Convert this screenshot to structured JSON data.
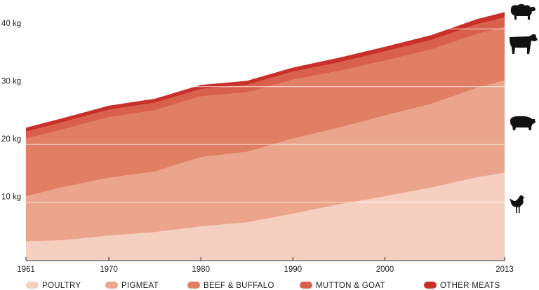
{
  "chart_data": {
    "type": "area",
    "stacked": true,
    "title": "",
    "xlabel": "",
    "ylabel": "",
    "xlim": [
      1961,
      2013
    ],
    "ylim": [
      0,
      45
    ],
    "grid": true,
    "legend_position": "bottom",
    "x_ticks": [
      "1961",
      "1970",
      "1980",
      "1990",
      "2000",
      "2013"
    ],
    "y_ticks": [
      "10 kg",
      "20 kg",
      "30 kg",
      "40 kg"
    ],
    "x": [
      1961,
      1965,
      1970,
      1975,
      1980,
      1985,
      1990,
      1995,
      2000,
      2005,
      2010,
      2013
    ],
    "series": [
      {
        "name": "POULTRY",
        "color": "#f5cfc0",
        "values": [
          3.2,
          3.4,
          4.2,
          4.8,
          5.8,
          6.5,
          8.0,
          9.6,
          11.0,
          12.5,
          14.3,
          15.1
        ]
      },
      {
        "name": "PIGMEAT",
        "color": "#eba58c",
        "values": [
          7.8,
          9.2,
          10.0,
          10.5,
          12.0,
          12.2,
          13.0,
          13.3,
          14.0,
          14.5,
          15.5,
          16.0
        ]
      },
      {
        "name": "BEEF & BUFFALO",
        "color": "#e07f64",
        "values": [
          10.0,
          10.0,
          10.5,
          10.6,
          10.5,
          10.3,
          10.2,
          9.8,
          9.5,
          9.4,
          9.3,
          9.2
        ]
      },
      {
        "name": "MUTTON & GOAT",
        "color": "#d9604a",
        "values": [
          1.2,
          1.25,
          1.3,
          1.3,
          1.3,
          1.3,
          1.4,
          1.5,
          1.6,
          1.65,
          1.7,
          1.7
        ]
      },
      {
        "name": "OTHER MEATS",
        "color": "#c9302a",
        "values": [
          0.7,
          0.7,
          0.7,
          0.7,
          0.7,
          0.7,
          0.7,
          0.8,
          0.8,
          0.85,
          0.9,
          0.9
        ]
      }
    ],
    "icons": [
      "sheep-icon",
      "cow-icon",
      "pig-icon",
      "chicken-icon"
    ]
  }
}
